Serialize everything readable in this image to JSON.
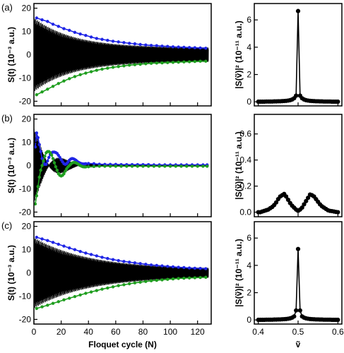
{
  "chart_data": [
    {
      "type": "line",
      "panel": "(a)",
      "xlim": [
        0,
        130
      ],
      "ylim": [
        -22,
        22
      ],
      "yticks": [
        -20,
        -10,
        0,
        10,
        20
      ],
      "xticks": [
        0,
        20,
        40,
        60,
        80,
        100,
        120
      ],
      "ylabel": "S(t) (10⁻³ a.u.)",
      "xlabel": "",
      "show_xtick_labels": false,
      "signal": {
        "n_cycles": 128,
        "samples_per_cycle": 14,
        "amplitude_start": 16,
        "amplitude_end": 3.0,
        "decay_rate": 0.035,
        "beat_period": 0,
        "beat_depth": 0,
        "color": "#000000"
      },
      "series": [
        {
          "name": "upper envelope",
          "color": "#1f25e6",
          "x": [
            2,
            6,
            10,
            14,
            18,
            22,
            26,
            30,
            34,
            38,
            42,
            46,
            50,
            54,
            58,
            62,
            66,
            70,
            74,
            78,
            82,
            86,
            90,
            94,
            98,
            102,
            106,
            110,
            114,
            118,
            122,
            126
          ],
          "y": [
            15.8,
            15.0,
            14.3,
            13.1,
            12.2,
            11.2,
            10.5,
            9.6,
            8.9,
            8.3,
            7.6,
            7.0,
            6.6,
            6.2,
            5.8,
            5.5,
            5.2,
            4.9,
            4.7,
            4.4,
            4.2,
            4.0,
            3.9,
            3.7,
            3.6,
            3.4,
            3.3,
            3.2,
            3.1,
            3.0,
            2.9,
            2.8
          ]
        },
        {
          "name": "lower envelope",
          "color": "#1f9e1f",
          "x": [
            2,
            6,
            10,
            14,
            18,
            22,
            26,
            30,
            34,
            38,
            42,
            46,
            50,
            54,
            58,
            62,
            66,
            70,
            74,
            78,
            82,
            86,
            90,
            94,
            98,
            102,
            106,
            110,
            114,
            118,
            122,
            126
          ],
          "y": [
            -17.2,
            -16.0,
            -14.8,
            -13.6,
            -12.4,
            -11.3,
            -10.3,
            -9.4,
            -8.6,
            -7.9,
            -7.3,
            -6.7,
            -6.2,
            -5.8,
            -5.4,
            -5.1,
            -4.8,
            -4.5,
            -4.3,
            -4.1,
            -3.9,
            -3.7,
            -3.6,
            -3.5,
            -3.4,
            -3.3,
            -3.2,
            -3.1,
            -3.0,
            -2.9,
            -2.8,
            -2.8
          ]
        }
      ]
    },
    {
      "type": "line",
      "panel": "(b)",
      "xlim": [
        0,
        130
      ],
      "ylim": [
        -22,
        22
      ],
      "yticks": [
        -20,
        -10,
        0,
        10,
        20
      ],
      "xticks": [
        0,
        20,
        40,
        60,
        80,
        100,
        120
      ],
      "ylabel": "S(t) (10⁻³ a.u.)",
      "xlabel": "",
      "show_xtick_labels": false,
      "signal": {
        "n_cycles": 128,
        "samples_per_cycle": 14,
        "amplitude_start": 16,
        "amplitude_end": 0.3,
        "decay_rate": 0.08,
        "beat_period": 22,
        "beat_depth": 0.95,
        "color": "#000000"
      },
      "series": [
        {
          "name": "upper envelope",
          "color": "#1f25e6",
          "x": [
            1,
            2,
            3,
            4,
            5,
            6,
            7,
            8,
            9,
            10,
            11,
            12,
            13,
            14,
            15,
            16,
            17,
            18,
            19,
            20,
            21,
            22,
            23,
            24,
            25,
            26,
            27,
            28,
            29,
            30,
            31,
            32,
            33,
            34,
            35,
            36,
            37,
            38,
            40,
            44,
            48,
            52,
            56,
            60,
            64,
            68,
            72,
            76,
            80,
            84,
            88,
            92,
            96,
            100,
            104,
            108,
            112,
            116,
            120,
            124,
            127
          ],
          "y": [
            8,
            14,
            12,
            9,
            6,
            3,
            1.5,
            0.5,
            0.5,
            2,
            3.5,
            4.8,
            5.5,
            5.8,
            5.8,
            5.6,
            5.2,
            4.4,
            3.5,
            2.5,
            1.6,
            0.8,
            0.5,
            0.8,
            1.5,
            2.3,
            2.8,
            3.0,
            2.9,
            2.6,
            2.2,
            1.7,
            1.3,
            1.0,
            0.8,
            0.7,
            0.7,
            0.8,
            0.9,
            0.8,
            0.6,
            0.5,
            0.5,
            0.5,
            0.4,
            0.4,
            0.4,
            0.4,
            0.4,
            0.4,
            0.3,
            0.3,
            0.3,
            0.3,
            0.3,
            0.3,
            0.3,
            0.3,
            0.3,
            0.3,
            0.3
          ]
        },
        {
          "name": "lower envelope",
          "color": "#1f9e1f",
          "x": [
            1,
            2,
            3,
            4,
            5,
            6,
            7,
            8,
            9,
            10,
            11,
            12,
            13,
            14,
            15,
            16,
            17,
            18,
            19,
            20,
            21,
            22,
            23,
            24,
            25,
            26,
            27,
            28,
            29,
            30,
            31,
            32,
            33,
            34,
            35,
            36,
            37,
            38,
            40,
            44,
            48,
            52,
            56,
            60,
            64,
            68,
            72,
            76,
            80,
            84,
            88,
            92,
            96,
            100,
            104,
            108,
            112,
            116,
            120,
            124,
            127
          ],
          "y": [
            -16.5,
            -13,
            -9,
            -5,
            -2,
            0,
            2,
            4,
            5.5,
            6,
            6,
            5.5,
            4.5,
            3,
            1.2,
            -0.5,
            -2,
            -3.5,
            -4.2,
            -4.5,
            -4.2,
            -3.5,
            -2.4,
            -1.4,
            -0.6,
            0,
            0.6,
            1.1,
            1.3,
            1.3,
            1.1,
            0.8,
            0.4,
            0,
            -0.3,
            -0.5,
            -0.6,
            -0.6,
            -0.5,
            -0.4,
            -0.3,
            -0.3,
            -0.3,
            -0.3,
            -0.3,
            -0.3,
            -0.3,
            -0.3,
            -0.3,
            -0.3,
            -0.3,
            -0.3,
            -0.3,
            -0.3,
            -0.3,
            -0.3,
            -0.3,
            -0.3,
            -0.3,
            -0.3,
            -0.3
          ]
        }
      ]
    },
    {
      "type": "line",
      "panel": "(c)",
      "xlim": [
        0,
        130
      ],
      "ylim": [
        -22,
        22
      ],
      "yticks": [
        -20,
        -10,
        0,
        10,
        20
      ],
      "xticks": [
        0,
        20,
        40,
        60,
        80,
        100,
        120
      ],
      "ylabel": "S(t) (10⁻³ a.u.)",
      "xlabel": "Floquet cycle (N)",
      "show_xtick_labels": true,
      "signal": {
        "n_cycles": 128,
        "samples_per_cycle": 14,
        "amplitude_start": 15.3,
        "amplitude_end": 1.6,
        "decay_rate": 0.025,
        "beat_period": 0,
        "beat_depth": 0,
        "color": "#000000"
      },
      "series": [
        {
          "name": "upper envelope",
          "color": "#1f25e6",
          "x": [
            2,
            6,
            10,
            14,
            18,
            22,
            26,
            30,
            34,
            38,
            42,
            46,
            50,
            54,
            58,
            62,
            66,
            70,
            74,
            78,
            82,
            86,
            90,
            94,
            98,
            102,
            106,
            110,
            114,
            118,
            122,
            126
          ],
          "y": [
            15.3,
            14.6,
            13.9,
            13.1,
            12.3,
            11.5,
            10.7,
            10.0,
            9.2,
            8.5,
            7.9,
            7.3,
            6.7,
            6.2,
            5.7,
            5.3,
            4.9,
            4.6,
            4.3,
            4.0,
            3.7,
            3.4,
            3.2,
            3.0,
            2.8,
            2.6,
            2.4,
            2.3,
            2.1,
            2.0,
            1.9,
            1.8
          ]
        },
        {
          "name": "lower envelope",
          "color": "#1f9e1f",
          "x": [
            2,
            6,
            10,
            14,
            18,
            22,
            26,
            30,
            34,
            38,
            42,
            46,
            50,
            54,
            58,
            62,
            66,
            70,
            74,
            78,
            82,
            86,
            90,
            94,
            98,
            102,
            106,
            110,
            114,
            118,
            122,
            126
          ],
          "y": [
            -15.3,
            -14.6,
            -13.9,
            -13.1,
            -12.4,
            -11.6,
            -10.9,
            -10.2,
            -9.5,
            -8.8,
            -8.2,
            -7.6,
            -7.0,
            -6.5,
            -6.0,
            -5.5,
            -5.1,
            -4.7,
            -4.3,
            -4.0,
            -3.7,
            -3.4,
            -3.2,
            -3.0,
            -2.8,
            -2.6,
            -2.4,
            -2.3,
            -2.2,
            -2.1,
            -2.0,
            -1.9
          ]
        }
      ]
    },
    {
      "type": "line",
      "panel": "(a)",
      "xlim": [
        0.39,
        0.61
      ],
      "ylim": [
        -0.3,
        7.2
      ],
      "yticks": [
        0,
        2,
        4,
        6
      ],
      "xticks": [
        0.4,
        0.5,
        0.6
      ],
      "ylabel": "|S(ṽ)|² (10⁻¹¹ a.u.)",
      "xlabel": "",
      "show_xtick_labels": false,
      "series": [
        {
          "name": "spectrum",
          "color": "#000000",
          "x": [
            0.4,
            0.405,
            0.41,
            0.415,
            0.42,
            0.425,
            0.43,
            0.435,
            0.44,
            0.445,
            0.45,
            0.455,
            0.46,
            0.465,
            0.47,
            0.475,
            0.48,
            0.485,
            0.49,
            0.495,
            0.5,
            0.505,
            0.51,
            0.515,
            0.52,
            0.525,
            0.53,
            0.535,
            0.54,
            0.545,
            0.55,
            0.555,
            0.56,
            0.565,
            0.57,
            0.575,
            0.58,
            0.585,
            0.59,
            0.595,
            0.6
          ],
          "y": [
            0.01,
            0.01,
            0.01,
            0.01,
            0.02,
            0.02,
            0.02,
            0.02,
            0.03,
            0.03,
            0.04,
            0.04,
            0.05,
            0.06,
            0.07,
            0.09,
            0.12,
            0.17,
            0.26,
            0.45,
            6.65,
            0.45,
            0.26,
            0.17,
            0.12,
            0.09,
            0.07,
            0.06,
            0.05,
            0.04,
            0.04,
            0.03,
            0.03,
            0.02,
            0.02,
            0.02,
            0.02,
            0.01,
            0.01,
            0.01,
            0.01
          ]
        }
      ]
    },
    {
      "type": "line",
      "panel": "(b)",
      "xlim": [
        0.39,
        0.61
      ],
      "ylim": [
        -0.035,
        0.75
      ],
      "yticks": [
        0.0,
        0.2,
        0.4,
        0.6
      ],
      "yticklabels": [
        "0.0",
        "0.2",
        "0.4",
        "0.6"
      ],
      "xticks": [
        0.4,
        0.5,
        0.6
      ],
      "ylabel": "|S(ṽ)|² (10⁻¹¹ a.u.)",
      "xlabel": "",
      "show_xtick_labels": false,
      "series": [
        {
          "name": "spectrum",
          "color": "#000000",
          "x": [
            0.4,
            0.405,
            0.41,
            0.415,
            0.42,
            0.425,
            0.43,
            0.435,
            0.44,
            0.445,
            0.45,
            0.455,
            0.46,
            0.465,
            0.47,
            0.475,
            0.48,
            0.485,
            0.49,
            0.495,
            0.5,
            0.505,
            0.51,
            0.515,
            0.52,
            0.525,
            0.53,
            0.535,
            0.54,
            0.545,
            0.55,
            0.555,
            0.56,
            0.565,
            0.57,
            0.575,
            0.58,
            0.585,
            0.59,
            0.595,
            0.6
          ],
          "y": [
            0.0,
            0.0,
            0.005,
            0.01,
            0.015,
            0.02,
            0.03,
            0.04,
            0.055,
            0.075,
            0.1,
            0.12,
            0.13,
            0.14,
            0.12,
            0.095,
            0.07,
            0.05,
            0.035,
            0.02,
            0.01,
            0.02,
            0.035,
            0.06,
            0.085,
            0.11,
            0.135,
            0.13,
            0.12,
            0.1,
            0.08,
            0.06,
            0.045,
            0.035,
            0.025,
            0.015,
            0.01,
            0.008,
            0.005,
            0.002,
            0.0
          ]
        }
      ]
    },
    {
      "type": "line",
      "panel": "(c)",
      "xlim": [
        0.39,
        0.61
      ],
      "ylim": [
        -0.3,
        7.2
      ],
      "yticks": [
        0,
        2,
        4,
        6
      ],
      "xticks": [
        0.4,
        0.5,
        0.6
      ],
      "ylabel": "|S(ṽ)|² (10⁻¹¹ a.u.)",
      "xlabel": "ṽ",
      "show_xtick_labels": true,
      "series": [
        {
          "name": "spectrum",
          "color": "#000000",
          "x": [
            0.4,
            0.405,
            0.41,
            0.415,
            0.42,
            0.425,
            0.43,
            0.435,
            0.44,
            0.445,
            0.45,
            0.455,
            0.46,
            0.465,
            0.47,
            0.475,
            0.48,
            0.485,
            0.49,
            0.495,
            0.5,
            0.505,
            0.51,
            0.515,
            0.52,
            0.525,
            0.53,
            0.535,
            0.54,
            0.545,
            0.55,
            0.555,
            0.56,
            0.565,
            0.57,
            0.575,
            0.58,
            0.585,
            0.59,
            0.595,
            0.6
          ],
          "y": [
            0.01,
            0.01,
            0.01,
            0.01,
            0.02,
            0.02,
            0.02,
            0.02,
            0.03,
            0.03,
            0.04,
            0.04,
            0.05,
            0.06,
            0.07,
            0.09,
            0.12,
            0.17,
            0.26,
            0.7,
            5.2,
            0.7,
            0.26,
            0.17,
            0.12,
            0.09,
            0.07,
            0.06,
            0.05,
            0.04,
            0.04,
            0.03,
            0.03,
            0.02,
            0.02,
            0.02,
            0.02,
            0.01,
            0.01,
            0.01,
            0.01
          ]
        }
      ]
    }
  ]
}
